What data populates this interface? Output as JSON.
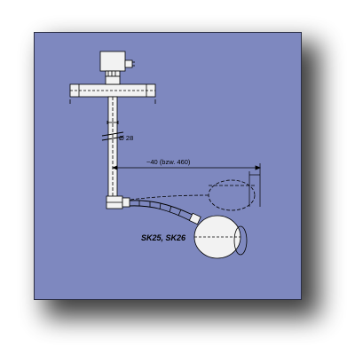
{
  "diagram": {
    "dimension_diameter": "Ø 28",
    "dimension_length": "~40 (bzw. 460)",
    "model_label": "SK25, SK26"
  },
  "colors": {
    "panel_background": "#7e88bf",
    "float_fill": "#f2f2f2",
    "line": "#000000"
  }
}
